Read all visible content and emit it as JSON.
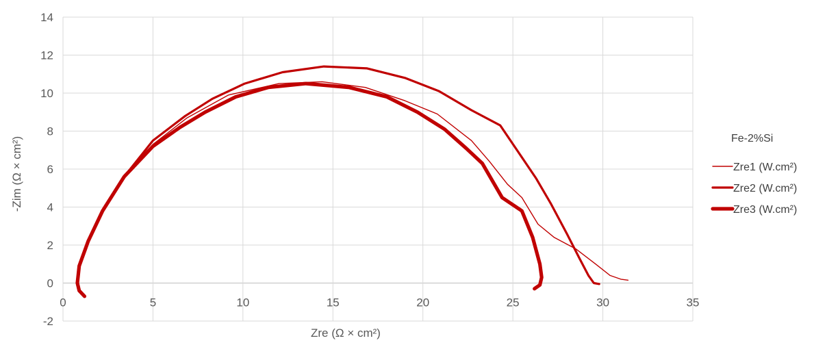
{
  "chart_data": {
    "type": "line",
    "xlabel": "Zre (Ω × cm²)",
    "ylabel": "-Zim (Ω × cm²)",
    "xlim": [
      0,
      35
    ],
    "ylim": [
      -2,
      14
    ],
    "xticks": [
      0,
      5,
      10,
      15,
      20,
      25,
      30,
      35
    ],
    "yticks": [
      -2,
      0,
      2,
      4,
      6,
      8,
      10,
      12,
      14
    ],
    "grid": true,
    "legend": {
      "title": "Fe-2%Si",
      "position": "right"
    },
    "series": [
      {
        "name": "Zre1 (W.cm²)",
        "color": "#c00000",
        "line_weight": "thin",
        "points": [
          [
            0.8,
            0.0
          ],
          [
            0.9,
            0.9
          ],
          [
            1.4,
            2.2
          ],
          [
            2.2,
            3.8
          ],
          [
            3.4,
            5.6
          ],
          [
            5.0,
            7.3
          ],
          [
            6.9,
            8.7
          ],
          [
            9.2,
            9.9
          ],
          [
            12.0,
            10.5
          ],
          [
            14.4,
            10.6
          ],
          [
            16.8,
            10.3
          ],
          [
            19.0,
            9.6
          ],
          [
            20.8,
            8.9
          ],
          [
            22.7,
            7.5
          ],
          [
            23.7,
            6.4
          ],
          [
            24.7,
            5.2
          ],
          [
            25.5,
            4.5
          ],
          [
            26.4,
            3.1
          ],
          [
            27.3,
            2.4
          ],
          [
            28.5,
            1.8
          ],
          [
            29.6,
            1.0
          ],
          [
            30.4,
            0.4
          ],
          [
            31.0,
            0.2
          ],
          [
            31.4,
            0.15
          ]
        ]
      },
      {
        "name": "Zre2 (W.cm²)",
        "color": "#c00000",
        "line_weight": "medium",
        "points": [
          [
            0.8,
            0.0
          ],
          [
            0.9,
            0.9
          ],
          [
            1.4,
            2.2
          ],
          [
            2.2,
            3.8
          ],
          [
            3.4,
            5.6
          ],
          [
            5.0,
            7.5
          ],
          [
            6.8,
            8.8
          ],
          [
            8.3,
            9.7
          ],
          [
            10.1,
            10.5
          ],
          [
            12.2,
            11.1
          ],
          [
            14.5,
            11.4
          ],
          [
            16.9,
            11.3
          ],
          [
            19.0,
            10.8
          ],
          [
            20.9,
            10.1
          ],
          [
            22.7,
            9.1
          ],
          [
            24.3,
            8.3
          ],
          [
            25.3,
            6.9
          ],
          [
            26.3,
            5.5
          ],
          [
            27.1,
            4.2
          ],
          [
            28.0,
            2.6
          ],
          [
            28.7,
            1.3
          ],
          [
            29.2,
            0.4
          ],
          [
            29.5,
            0.0
          ],
          [
            29.8,
            -0.05
          ]
        ]
      },
      {
        "name": "Zre3 (W.cm²)",
        "color": "#c00000",
        "line_weight": "thick",
        "points": [
          [
            1.2,
            -0.7
          ],
          [
            0.9,
            -0.4
          ],
          [
            0.8,
            0.0
          ],
          [
            0.9,
            0.9
          ],
          [
            1.4,
            2.2
          ],
          [
            2.2,
            3.8
          ],
          [
            3.4,
            5.6
          ],
          [
            5.0,
            7.2
          ],
          [
            6.5,
            8.2
          ],
          [
            7.9,
            9.0
          ],
          [
            9.6,
            9.8
          ],
          [
            11.4,
            10.3
          ],
          [
            13.5,
            10.5
          ],
          [
            15.9,
            10.3
          ],
          [
            18.0,
            9.8
          ],
          [
            19.7,
            9.0
          ],
          [
            21.2,
            8.1
          ],
          [
            22.4,
            7.1
          ],
          [
            23.3,
            6.3
          ],
          [
            24.4,
            4.5
          ],
          [
            25.5,
            3.8
          ],
          [
            26.1,
            2.4
          ],
          [
            26.5,
            1.0
          ],
          [
            26.6,
            0.3
          ],
          [
            26.5,
            -0.1
          ],
          [
            26.2,
            -0.3
          ]
        ]
      }
    ]
  }
}
